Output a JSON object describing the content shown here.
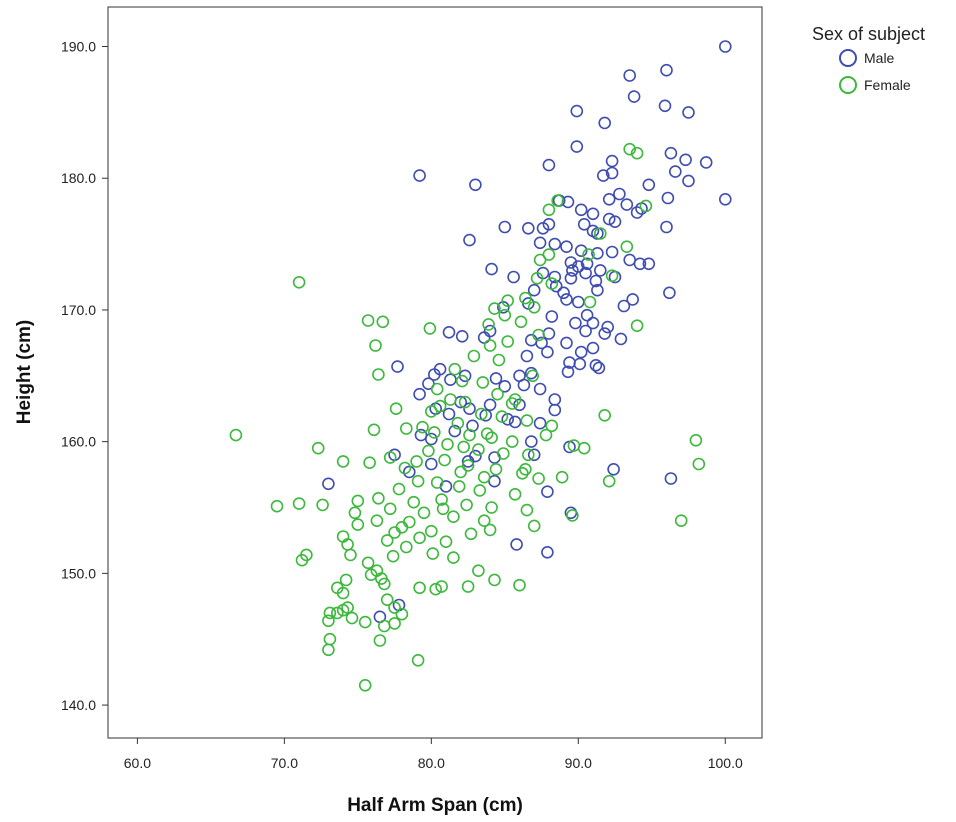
{
  "chart_data": {
    "type": "scatter",
    "xlabel": "Half Arm Span (cm)",
    "ylabel": "Height (cm)",
    "xlim": [
      58,
      102.5
    ],
    "ylim": [
      137.5,
      193
    ],
    "xticks": [
      "60.0",
      "70.0",
      "80.0",
      "90.0",
      "100.0"
    ],
    "yticks": [
      "140.0",
      "150.0",
      "160.0",
      "170.0",
      "180.0",
      "190.0"
    ],
    "grid": false,
    "legend": {
      "title": "Sex of subject",
      "placement": "right"
    },
    "series": [
      {
        "name": "Male",
        "color": "#3f4db0",
        "points": [
          [
            100.0,
            190.0
          ],
          [
            96.0,
            188.2
          ],
          [
            93.5,
            187.8
          ],
          [
            93.8,
            186.2
          ],
          [
            89.9,
            185.1
          ],
          [
            95.9,
            185.5
          ],
          [
            97.5,
            185.0
          ],
          [
            91.8,
            184.2
          ],
          [
            89.9,
            182.4
          ],
          [
            96.3,
            181.9
          ],
          [
            97.3,
            181.4
          ],
          [
            98.7,
            181.2
          ],
          [
            92.3,
            181.3
          ],
          [
            88.0,
            181.0
          ],
          [
            96.6,
            180.5
          ],
          [
            92.3,
            180.4
          ],
          [
            91.7,
            180.2
          ],
          [
            97.5,
            179.8
          ],
          [
            79.2,
            180.2
          ],
          [
            83.0,
            179.5
          ],
          [
            94.8,
            179.5
          ],
          [
            92.8,
            178.8
          ],
          [
            93.3,
            178.0
          ],
          [
            88.7,
            178.3
          ],
          [
            89.3,
            178.2
          ],
          [
            92.1,
            178.4
          ],
          [
            100.0,
            178.4
          ],
          [
            96.1,
            178.5
          ],
          [
            94.3,
            177.7
          ],
          [
            94.0,
            177.4
          ],
          [
            90.2,
            177.6
          ],
          [
            91.0,
            177.3
          ],
          [
            92.1,
            176.9
          ],
          [
            92.5,
            176.7
          ],
          [
            90.4,
            176.5
          ],
          [
            88.0,
            176.5
          ],
          [
            87.6,
            176.2
          ],
          [
            86.6,
            176.2
          ],
          [
            91.0,
            176.0
          ],
          [
            91.3,
            175.8
          ],
          [
            96.0,
            176.3
          ],
          [
            85.0,
            176.3
          ],
          [
            82.6,
            175.3
          ],
          [
            88.4,
            175.0
          ],
          [
            87.4,
            175.1
          ],
          [
            89.2,
            174.8
          ],
          [
            90.2,
            174.5
          ],
          [
            91.3,
            174.3
          ],
          [
            92.3,
            174.4
          ],
          [
            93.5,
            173.8
          ],
          [
            94.2,
            173.5
          ],
          [
            94.8,
            173.5
          ],
          [
            89.5,
            173.6
          ],
          [
            90.0,
            173.3
          ],
          [
            90.6,
            173.5
          ],
          [
            91.5,
            173.0
          ],
          [
            89.6,
            173.0
          ],
          [
            90.5,
            172.8
          ],
          [
            84.1,
            173.1
          ],
          [
            85.6,
            172.5
          ],
          [
            87.6,
            172.8
          ],
          [
            88.4,
            172.5
          ],
          [
            89.5,
            172.4
          ],
          [
            91.2,
            172.2
          ],
          [
            92.5,
            172.5
          ],
          [
            88.5,
            171.8
          ],
          [
            87.0,
            171.5
          ],
          [
            89.0,
            171.3
          ],
          [
            91.3,
            171.5
          ],
          [
            96.2,
            171.3
          ],
          [
            93.7,
            170.8
          ],
          [
            90.0,
            170.6
          ],
          [
            89.2,
            170.8
          ],
          [
            86.6,
            170.5
          ],
          [
            84.9,
            170.2
          ],
          [
            93.1,
            170.3
          ],
          [
            90.6,
            169.6
          ],
          [
            88.2,
            169.5
          ],
          [
            89.8,
            169.0
          ],
          [
            91.0,
            169.0
          ],
          [
            92.0,
            168.7
          ],
          [
            88.0,
            168.2
          ],
          [
            90.5,
            168.4
          ],
          [
            91.8,
            168.2
          ],
          [
            92.9,
            167.8
          ],
          [
            84.0,
            168.4
          ],
          [
            82.1,
            168.0
          ],
          [
            81.2,
            168.3
          ],
          [
            83.6,
            167.9
          ],
          [
            86.8,
            167.7
          ],
          [
            87.5,
            167.5
          ],
          [
            89.2,
            167.5
          ],
          [
            91.0,
            167.1
          ],
          [
            90.2,
            166.8
          ],
          [
            87.9,
            166.8
          ],
          [
            86.5,
            166.5
          ],
          [
            89.4,
            166.0
          ],
          [
            90.1,
            165.9
          ],
          [
            91.2,
            165.8
          ],
          [
            91.4,
            165.6
          ],
          [
            89.3,
            165.3
          ],
          [
            86.8,
            165.2
          ],
          [
            86.0,
            165.0
          ],
          [
            84.4,
            164.8
          ],
          [
            82.3,
            165.0
          ],
          [
            80.6,
            165.5
          ],
          [
            80.2,
            165.1
          ],
          [
            77.7,
            165.7
          ],
          [
            81.3,
            164.7
          ],
          [
            79.8,
            164.4
          ],
          [
            85.0,
            164.2
          ],
          [
            87.4,
            164.0
          ],
          [
            88.4,
            163.2
          ],
          [
            86.0,
            162.8
          ],
          [
            84.0,
            162.8
          ],
          [
            82.0,
            163.0
          ],
          [
            79.2,
            163.6
          ],
          [
            80.3,
            162.5
          ],
          [
            81.2,
            162.1
          ],
          [
            82.6,
            162.5
          ],
          [
            85.7,
            161.5
          ],
          [
            87.4,
            161.4
          ],
          [
            81.6,
            160.8
          ],
          [
            79.3,
            160.5
          ],
          [
            80.0,
            160.2
          ],
          [
            86.8,
            160.0
          ],
          [
            89.4,
            159.6
          ],
          [
            87.0,
            159.0
          ],
          [
            84.3,
            158.8
          ],
          [
            82.5,
            158.5
          ],
          [
            80.0,
            158.3
          ],
          [
            77.5,
            159.0
          ],
          [
            92.4,
            157.9
          ],
          [
            96.3,
            157.2
          ],
          [
            84.3,
            157.0
          ],
          [
            87.9,
            156.2
          ],
          [
            89.5,
            154.6
          ],
          [
            73.0,
            156.8
          ],
          [
            85.8,
            152.2
          ],
          [
            87.9,
            151.6
          ],
          [
            76.5,
            146.7
          ],
          [
            77.8,
            147.6
          ],
          [
            81.0,
            156.6
          ],
          [
            83.0,
            158.9
          ],
          [
            85.2,
            161.7
          ],
          [
            88.4,
            162.4
          ],
          [
            82.8,
            161.2
          ],
          [
            78.5,
            157.7
          ],
          [
            86.3,
            164.3
          ],
          [
            83.7,
            162.0
          ]
        ]
      },
      {
        "name": "Female",
        "color": "#3cb83c",
        "points": [
          [
            93.5,
            182.2
          ],
          [
            94.0,
            181.9
          ],
          [
            88.6,
            178.3
          ],
          [
            94.6,
            177.9
          ],
          [
            88.0,
            177.6
          ],
          [
            91.5,
            175.8
          ],
          [
            93.3,
            174.8
          ],
          [
            90.7,
            174.2
          ],
          [
            88.0,
            174.2
          ],
          [
            87.4,
            173.8
          ],
          [
            92.3,
            172.6
          ],
          [
            87.2,
            172.4
          ],
          [
            88.2,
            172.0
          ],
          [
            86.4,
            170.9
          ],
          [
            85.2,
            170.7
          ],
          [
            90.8,
            170.6
          ],
          [
            87.0,
            170.2
          ],
          [
            84.3,
            170.1
          ],
          [
            85.0,
            169.6
          ],
          [
            86.1,
            169.1
          ],
          [
            83.9,
            168.9
          ],
          [
            71.0,
            172.1
          ],
          [
            75.7,
            169.2
          ],
          [
            76.7,
            169.1
          ],
          [
            79.9,
            168.6
          ],
          [
            94.0,
            168.8
          ],
          [
            87.3,
            168.1
          ],
          [
            85.2,
            167.6
          ],
          [
            84.0,
            167.3
          ],
          [
            76.2,
            167.3
          ],
          [
            82.9,
            166.5
          ],
          [
            84.6,
            166.2
          ],
          [
            81.6,
            165.5
          ],
          [
            86.9,
            165.0
          ],
          [
            83.5,
            164.5
          ],
          [
            82.1,
            164.6
          ],
          [
            80.4,
            164.0
          ],
          [
            76.4,
            165.1
          ],
          [
            84.5,
            163.6
          ],
          [
            85.7,
            163.2
          ],
          [
            82.3,
            163.0
          ],
          [
            80.6,
            162.7
          ],
          [
            77.6,
            162.5
          ],
          [
            80.0,
            162.3
          ],
          [
            83.4,
            162.1
          ],
          [
            84.8,
            161.9
          ],
          [
            86.5,
            161.6
          ],
          [
            88.2,
            161.2
          ],
          [
            91.8,
            162.0
          ],
          [
            81.8,
            161.4
          ],
          [
            79.4,
            161.1
          ],
          [
            78.3,
            161.0
          ],
          [
            80.2,
            160.7
          ],
          [
            82.6,
            160.5
          ],
          [
            84.1,
            160.3
          ],
          [
            85.5,
            160.0
          ],
          [
            87.8,
            160.5
          ],
          [
            89.7,
            159.7
          ],
          [
            90.4,
            159.5
          ],
          [
            76.1,
            160.9
          ],
          [
            72.3,
            159.5
          ],
          [
            66.7,
            160.5
          ],
          [
            81.1,
            159.8
          ],
          [
            83.2,
            159.4
          ],
          [
            84.9,
            159.1
          ],
          [
            86.6,
            159.0
          ],
          [
            77.2,
            158.8
          ],
          [
            79.0,
            158.5
          ],
          [
            80.9,
            158.6
          ],
          [
            82.5,
            158.2
          ],
          [
            84.4,
            157.9
          ],
          [
            86.2,
            157.6
          ],
          [
            74.0,
            158.5
          ],
          [
            75.8,
            158.4
          ],
          [
            78.2,
            158.0
          ],
          [
            82.0,
            157.7
          ],
          [
            83.6,
            157.3
          ],
          [
            87.3,
            157.2
          ],
          [
            88.9,
            157.3
          ],
          [
            92.1,
            157.0
          ],
          [
            98.0,
            160.1
          ],
          [
            98.2,
            158.3
          ],
          [
            79.1,
            157.0
          ],
          [
            80.4,
            156.9
          ],
          [
            81.9,
            156.6
          ],
          [
            83.3,
            156.3
          ],
          [
            85.7,
            156.0
          ],
          [
            77.8,
            156.4
          ],
          [
            76.4,
            155.7
          ],
          [
            78.8,
            155.4
          ],
          [
            80.7,
            155.6
          ],
          [
            82.4,
            155.2
          ],
          [
            84.1,
            155.0
          ],
          [
            86.5,
            154.8
          ],
          [
            75.0,
            155.5
          ],
          [
            77.2,
            154.9
          ],
          [
            79.5,
            154.6
          ],
          [
            81.5,
            154.3
          ],
          [
            83.6,
            154.0
          ],
          [
            97.0,
            154.0
          ],
          [
            89.6,
            154.4
          ],
          [
            69.5,
            155.1
          ],
          [
            71.0,
            155.3
          ],
          [
            72.6,
            155.2
          ],
          [
            74.8,
            154.6
          ],
          [
            76.3,
            154.0
          ],
          [
            78.0,
            153.5
          ],
          [
            80.0,
            153.2
          ],
          [
            82.7,
            153.0
          ],
          [
            84.0,
            153.3
          ],
          [
            87.0,
            153.6
          ],
          [
            75.0,
            153.7
          ],
          [
            77.5,
            153.1
          ],
          [
            79.2,
            152.7
          ],
          [
            81.0,
            152.4
          ],
          [
            77.0,
            152.5
          ],
          [
            78.3,
            152.0
          ],
          [
            80.1,
            151.5
          ],
          [
            74.0,
            152.8
          ],
          [
            74.3,
            152.2
          ],
          [
            74.5,
            151.4
          ],
          [
            71.5,
            151.4
          ],
          [
            71.2,
            151.0
          ],
          [
            77.4,
            151.3
          ],
          [
            81.5,
            151.2
          ],
          [
            75.7,
            150.8
          ],
          [
            76.3,
            150.2
          ],
          [
            75.9,
            149.9
          ],
          [
            76.6,
            149.6
          ],
          [
            76.8,
            149.2
          ],
          [
            83.2,
            150.2
          ],
          [
            84.3,
            149.5
          ],
          [
            86.0,
            149.1
          ],
          [
            79.2,
            148.9
          ],
          [
            80.3,
            148.8
          ],
          [
            80.7,
            149.0
          ],
          [
            82.5,
            149.0
          ],
          [
            73.6,
            148.9
          ],
          [
            74.0,
            148.5
          ],
          [
            74.2,
            149.5
          ],
          [
            77.0,
            148.0
          ],
          [
            77.5,
            147.4
          ],
          [
            78.0,
            146.9
          ],
          [
            74.0,
            147.2
          ],
          [
            74.3,
            147.4
          ],
          [
            73.6,
            147.0
          ],
          [
            73.1,
            147.0
          ],
          [
            74.6,
            146.6
          ],
          [
            75.5,
            146.3
          ],
          [
            73.0,
            146.4
          ],
          [
            77.5,
            146.2
          ],
          [
            76.8,
            146.0
          ],
          [
            73.1,
            145.0
          ],
          [
            73.0,
            144.2
          ],
          [
            76.5,
            144.9
          ],
          [
            79.1,
            143.4
          ],
          [
            75.5,
            141.5
          ],
          [
            78.5,
            153.9
          ],
          [
            80.8,
            154.9
          ],
          [
            82.2,
            159.6
          ],
          [
            83.8,
            160.6
          ],
          [
            81.3,
            163.2
          ],
          [
            85.5,
            162.9
          ],
          [
            86.4,
            157.9
          ],
          [
            79.8,
            159.3
          ]
        ]
      }
    ]
  }
}
